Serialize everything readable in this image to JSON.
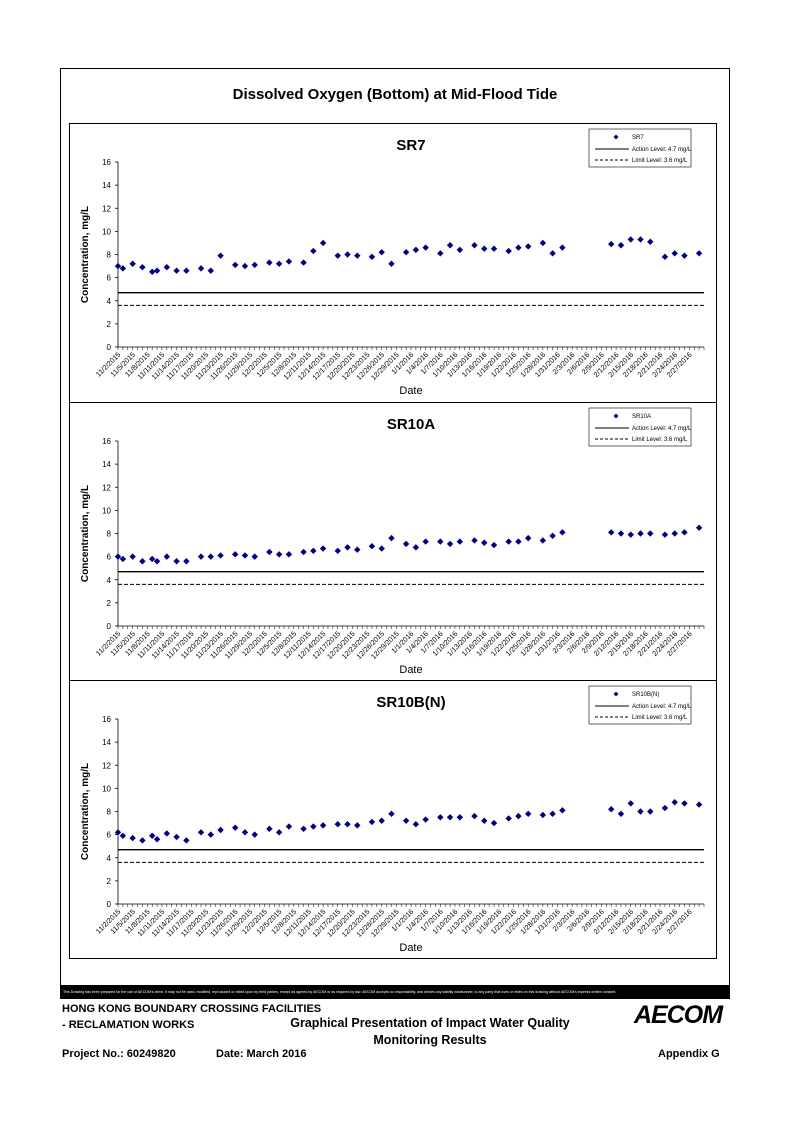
{
  "page": {
    "main_title": "Dissolved Oxygen (Bottom) at Mid-Flood Tide",
    "disclaimer": "This Drawing has been prepared for the use of AECOM's client. It may not be used, modified, reproduced or relied upon by third parties, except as agreed by AECOM or as required by law. AECOM accepts no responsibility, and denies any liability whatsoever, to any party that uses or relies on this drawing without AECOM's express written consent.",
    "footer": {
      "org_line1": "HONG KONG BOUNDARY CROSSING FACILITIES",
      "org_line2": "- RECLAMATION WORKS",
      "report_title_line1": "Graphical Presentation of Impact Water Quality",
      "report_title_line2": "Monitoring Results",
      "logo": "AECOM",
      "project_no": "Project No.: 60249820",
      "date": "Date: March 2016",
      "appendix": "Appendix G"
    }
  },
  "chart_data": [
    {
      "type": "scatter",
      "title": "SR7",
      "xlabel": "Date",
      "ylabel": "Concentration, mg/L",
      "ylim": [
        0,
        16
      ],
      "yticks": [
        0,
        2,
        4,
        6,
        8,
        10,
        12,
        14,
        16
      ],
      "xlim": [
        "11/2/2015",
        "3/1/2016"
      ],
      "xticks": [
        "11/2/2015",
        "11/5/2015",
        "11/8/2015",
        "11/11/2015",
        "11/14/2015",
        "11/17/2015",
        "11/20/2015",
        "11/23/2015",
        "11/26/2015",
        "11/29/2015",
        "12/2/2015",
        "12/5/2015",
        "12/8/2015",
        "12/11/2015",
        "12/14/2015",
        "12/17/2015",
        "12/20/2015",
        "12/23/2015",
        "12/26/2015",
        "12/29/2015",
        "1/1/2016",
        "1/4/2016",
        "1/7/2016",
        "1/10/2016",
        "1/13/2016",
        "1/16/2016",
        "1/19/2016",
        "1/22/2016",
        "1/25/2016",
        "1/28/2016",
        "1/31/2016",
        "2/3/2016",
        "2/6/2016",
        "2/9/2016",
        "2/12/2016",
        "2/15/2016",
        "2/18/2016",
        "2/21/2016",
        "2/24/2016",
        "2/27/2016"
      ],
      "grid": false,
      "legend_position": "top-right",
      "legend": {
        "points": "SR7",
        "action": "Action Level: 4.7 mg/L",
        "limit": "Limit Level: 3.6 mg/L"
      },
      "action_level": 4.7,
      "limit_level": 3.6,
      "points": [
        [
          "11/2/2015",
          7.0
        ],
        [
          "11/3/2015",
          6.8
        ],
        [
          "11/5/2015",
          7.2
        ],
        [
          "11/7/2015",
          6.9
        ],
        [
          "11/9/2015",
          6.5
        ],
        [
          "11/10/2015",
          6.6
        ],
        [
          "11/12/2015",
          6.9
        ],
        [
          "11/14/2015",
          6.6
        ],
        [
          "11/16/2015",
          6.6
        ],
        [
          "11/19/2015",
          6.8
        ],
        [
          "11/21/2015",
          6.6
        ],
        [
          "11/23/2015",
          7.9
        ],
        [
          "11/26/2015",
          7.1
        ],
        [
          "11/28/2015",
          7.0
        ],
        [
          "11/30/2015",
          7.1
        ],
        [
          "12/3/2015",
          7.3
        ],
        [
          "12/5/2015",
          7.2
        ],
        [
          "12/7/2015",
          7.4
        ],
        [
          "12/10/2015",
          7.3
        ],
        [
          "12/12/2015",
          8.3
        ],
        [
          "12/14/2015",
          9.0
        ],
        [
          "12/17/2015",
          7.9
        ],
        [
          "12/19/2015",
          8.0
        ],
        [
          "12/21/2015",
          7.9
        ],
        [
          "12/24/2015",
          7.8
        ],
        [
          "12/26/2015",
          8.2
        ],
        [
          "12/28/2015",
          7.2
        ],
        [
          "12/31/2015",
          8.2
        ],
        [
          "1/2/2016",
          8.4
        ],
        [
          "1/4/2016",
          8.6
        ],
        [
          "1/7/2016",
          8.1
        ],
        [
          "1/9/2016",
          8.8
        ],
        [
          "1/11/2016",
          8.4
        ],
        [
          "1/14/2016",
          8.8
        ],
        [
          "1/16/2016",
          8.5
        ],
        [
          "1/18/2016",
          8.5
        ],
        [
          "1/21/2016",
          8.3
        ],
        [
          "1/23/2016",
          8.6
        ],
        [
          "1/25/2016",
          8.7
        ],
        [
          "1/28/2016",
          9.0
        ],
        [
          "1/30/2016",
          8.1
        ],
        [
          "2/1/2016",
          8.6
        ],
        [
          "2/11/2016",
          8.9
        ],
        [
          "2/13/2016",
          8.8
        ],
        [
          "2/15/2016",
          9.3
        ],
        [
          "2/17/2016",
          9.3
        ],
        [
          "2/19/2016",
          9.1
        ],
        [
          "2/22/2016",
          7.8
        ],
        [
          "2/24/2016",
          8.1
        ],
        [
          "2/26/2016",
          7.9
        ],
        [
          "2/29/2016",
          8.1
        ]
      ]
    },
    {
      "type": "scatter",
      "title": "SR10A",
      "xlabel": "Date",
      "ylabel": "Concentration, mg/L",
      "ylim": [
        0,
        16
      ],
      "yticks": [
        0,
        2,
        4,
        6,
        8,
        10,
        12,
        14,
        16
      ],
      "xlim": [
        "11/2/2015",
        "3/1/2016"
      ],
      "xticks": [
        "11/2/2015",
        "11/5/2015",
        "11/8/2015",
        "11/11/2015",
        "11/14/2015",
        "11/17/2015",
        "11/20/2015",
        "11/23/2015",
        "11/26/2015",
        "11/29/2015",
        "12/2/2015",
        "12/5/2015",
        "12/8/2015",
        "12/11/2015",
        "12/14/2015",
        "12/17/2015",
        "12/20/2015",
        "12/23/2015",
        "12/26/2015",
        "12/29/2015",
        "1/1/2016",
        "1/4/2016",
        "1/7/2016",
        "1/10/2016",
        "1/13/2016",
        "1/16/2016",
        "1/19/2016",
        "1/22/2016",
        "1/25/2016",
        "1/28/2016",
        "1/31/2016",
        "2/3/2016",
        "2/6/2016",
        "2/9/2016",
        "2/12/2016",
        "2/15/2016",
        "2/18/2016",
        "2/21/2016",
        "2/24/2016",
        "2/27/2016"
      ],
      "grid": false,
      "legend_position": "top-right",
      "legend": {
        "points": "SR10A",
        "action": "Action Level: 4.7 mg/L",
        "limit": "Limit Level: 3.6 mg/L"
      },
      "action_level": 4.7,
      "limit_level": 3.6,
      "points": [
        [
          "11/2/2015",
          6.0
        ],
        [
          "11/3/2015",
          5.8
        ],
        [
          "11/5/2015",
          6.0
        ],
        [
          "11/7/2015",
          5.6
        ],
        [
          "11/9/2015",
          5.8
        ],
        [
          "11/10/2015",
          5.6
        ],
        [
          "11/12/2015",
          6.0
        ],
        [
          "11/14/2015",
          5.6
        ],
        [
          "11/16/2015",
          5.6
        ],
        [
          "11/19/2015",
          6.0
        ],
        [
          "11/21/2015",
          6.0
        ],
        [
          "11/23/2015",
          6.1
        ],
        [
          "11/26/2015",
          6.2
        ],
        [
          "11/28/2015",
          6.1
        ],
        [
          "11/30/2015",
          6.0
        ],
        [
          "12/3/2015",
          6.4
        ],
        [
          "12/5/2015",
          6.2
        ],
        [
          "12/7/2015",
          6.2
        ],
        [
          "12/10/2015",
          6.4
        ],
        [
          "12/12/2015",
          6.5
        ],
        [
          "12/14/2015",
          6.7
        ],
        [
          "12/17/2015",
          6.5
        ],
        [
          "12/19/2015",
          6.8
        ],
        [
          "12/21/2015",
          6.6
        ],
        [
          "12/24/2015",
          6.9
        ],
        [
          "12/26/2015",
          6.7
        ],
        [
          "12/28/2015",
          7.6
        ],
        [
          "12/31/2015",
          7.1
        ],
        [
          "1/2/2016",
          6.8
        ],
        [
          "1/4/2016",
          7.3
        ],
        [
          "1/7/2016",
          7.3
        ],
        [
          "1/9/2016",
          7.1
        ],
        [
          "1/11/2016",
          7.3
        ],
        [
          "1/14/2016",
          7.4
        ],
        [
          "1/16/2016",
          7.2
        ],
        [
          "1/18/2016",
          7.0
        ],
        [
          "1/21/2016",
          7.3
        ],
        [
          "1/23/2016",
          7.3
        ],
        [
          "1/25/2016",
          7.6
        ],
        [
          "1/28/2016",
          7.4
        ],
        [
          "1/30/2016",
          7.8
        ],
        [
          "2/1/2016",
          8.1
        ],
        [
          "2/11/2016",
          8.1
        ],
        [
          "2/13/2016",
          8.0
        ],
        [
          "2/15/2016",
          7.9
        ],
        [
          "2/17/2016",
          8.0
        ],
        [
          "2/19/2016",
          8.0
        ],
        [
          "2/22/2016",
          7.9
        ],
        [
          "2/24/2016",
          8.0
        ],
        [
          "2/26/2016",
          8.1
        ],
        [
          "2/29/2016",
          8.5
        ]
      ]
    },
    {
      "type": "scatter",
      "title": "SR10B(N)",
      "xlabel": "Date",
      "ylabel": "Concentration, mg/L",
      "ylim": [
        0,
        16
      ],
      "yticks": [
        0,
        2,
        4,
        6,
        8,
        10,
        12,
        14,
        16
      ],
      "xlim": [
        "11/2/2015",
        "3/1/2016"
      ],
      "xticks": [
        "11/2/2015",
        "11/5/2015",
        "11/8/2015",
        "11/11/2015",
        "11/14/2015",
        "11/17/2015",
        "11/20/2015",
        "11/23/2015",
        "11/26/2015",
        "11/29/2015",
        "12/2/2015",
        "12/5/2015",
        "12/8/2015",
        "12/11/2015",
        "12/14/2015",
        "12/17/2015",
        "12/20/2015",
        "12/23/2015",
        "12/26/2015",
        "12/29/2015",
        "1/1/2016",
        "1/4/2016",
        "1/7/2016",
        "1/10/2016",
        "1/13/2016",
        "1/16/2016",
        "1/19/2016",
        "1/22/2016",
        "1/25/2016",
        "1/28/2016",
        "1/31/2016",
        "2/3/2016",
        "2/6/2016",
        "2/9/2016",
        "2/12/2016",
        "2/15/2016",
        "2/18/2016",
        "2/21/2016",
        "2/24/2016",
        "2/27/2016"
      ],
      "grid": false,
      "legend_position": "top-right",
      "legend": {
        "points": "SR10B(N)",
        "action": "Action Level: 4.7 mg/L",
        "limit": "Limit Level: 3.6 mg/L"
      },
      "action_level": 4.7,
      "limit_level": 3.6,
      "points": [
        [
          "11/2/2015",
          6.2
        ],
        [
          "11/3/2015",
          5.9
        ],
        [
          "11/5/2015",
          5.7
        ],
        [
          "11/7/2015",
          5.5
        ],
        [
          "11/9/2015",
          5.9
        ],
        [
          "11/10/2015",
          5.6
        ],
        [
          "11/12/2015",
          6.1
        ],
        [
          "11/14/2015",
          5.8
        ],
        [
          "11/16/2015",
          5.5
        ],
        [
          "11/19/2015",
          6.2
        ],
        [
          "11/21/2015",
          6.0
        ],
        [
          "11/23/2015",
          6.4
        ],
        [
          "11/26/2015",
          6.6
        ],
        [
          "11/28/2015",
          6.2
        ],
        [
          "11/30/2015",
          6.0
        ],
        [
          "12/3/2015",
          6.5
        ],
        [
          "12/5/2015",
          6.2
        ],
        [
          "12/7/2015",
          6.7
        ],
        [
          "12/10/2015",
          6.5
        ],
        [
          "12/12/2015",
          6.7
        ],
        [
          "12/14/2015",
          6.8
        ],
        [
          "12/17/2015",
          6.9
        ],
        [
          "12/19/2015",
          6.9
        ],
        [
          "12/21/2015",
          6.8
        ],
        [
          "12/24/2015",
          7.1
        ],
        [
          "12/26/2015",
          7.2
        ],
        [
          "12/28/2015",
          7.8
        ],
        [
          "12/31/2015",
          7.2
        ],
        [
          "1/2/2016",
          6.9
        ],
        [
          "1/4/2016",
          7.3
        ],
        [
          "1/7/2016",
          7.5
        ],
        [
          "1/9/2016",
          7.5
        ],
        [
          "1/11/2016",
          7.5
        ],
        [
          "1/14/2016",
          7.6
        ],
        [
          "1/16/2016",
          7.2
        ],
        [
          "1/18/2016",
          7.0
        ],
        [
          "1/21/2016",
          7.4
        ],
        [
          "1/23/2016",
          7.6
        ],
        [
          "1/25/2016",
          7.8
        ],
        [
          "1/28/2016",
          7.7
        ],
        [
          "1/30/2016",
          7.8
        ],
        [
          "2/1/2016",
          8.1
        ],
        [
          "2/11/2016",
          8.2
        ],
        [
          "2/13/2016",
          7.8
        ],
        [
          "2/15/2016",
          8.7
        ],
        [
          "2/17/2016",
          8.0
        ],
        [
          "2/19/2016",
          8.0
        ],
        [
          "2/22/2016",
          8.3
        ],
        [
          "2/24/2016",
          8.8
        ],
        [
          "2/26/2016",
          8.7
        ],
        [
          "2/29/2016",
          8.6
        ]
      ]
    }
  ]
}
